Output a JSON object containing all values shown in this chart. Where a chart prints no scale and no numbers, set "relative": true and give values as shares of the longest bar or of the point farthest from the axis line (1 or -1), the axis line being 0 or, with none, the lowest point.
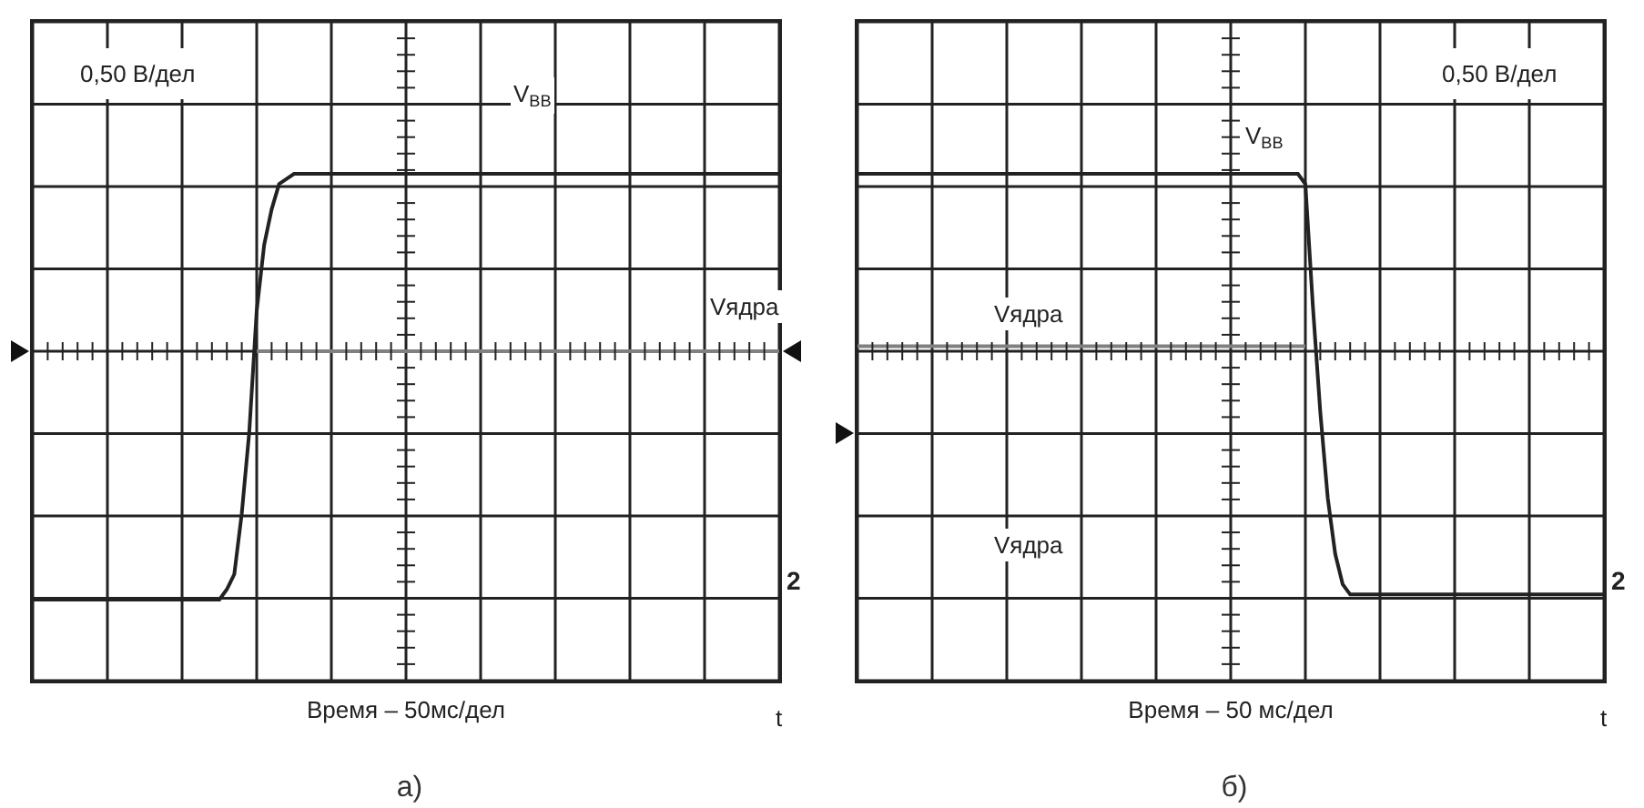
{
  "chart_data": [
    {
      "type": "line",
      "title": "а)",
      "xlabel": "Время – 50мс/дел",
      "relative": true,
      "grid": true,
      "categories": [
        null,
        null,
        null,
        null,
        null,
        null,
        null,
        null,
        null,
        null,
        null,
        null,
        null,
        null,
        null,
        null,
        null,
        null,
        null,
        null,
        null,
        null,
        null,
        null,
        null,
        null,
        null,
        null,
        null,
        null,
        null,
        null,
        null,
        null,
        null,
        null,
        null,
        null,
        null,
        null,
        null,
        null,
        null,
        null,
        null,
        null,
        null,
        null,
        null,
        null,
        null,
        null,
        null,
        null,
        null,
        null,
        null,
        null,
        null,
        null,
        null,
        null,
        null,
        null,
        null,
        null,
        null,
        null,
        null,
        null,
        null,
        null,
        null,
        null,
        null,
        null,
        null,
        null,
        null,
        null,
        null,
        null,
        null,
        null,
        null,
        null,
        null,
        null,
        null,
        null,
        null,
        null,
        null,
        null,
        null,
        null,
        null,
        null,
        null,
        null,
        null
      ],
      "series": [
        {
          "color": "#222222",
          "values": [
            0.16,
            0.16,
            0.16,
            0.16,
            0.16,
            0.16,
            0.16,
            0.16,
            0.16,
            0.16,
            0.16,
            0.16,
            0.16,
            0.16,
            0.16,
            0.16,
            0.16,
            0.16,
            0.16,
            0.16,
            0.16,
            0.16,
            0.16,
            0.16,
            0.16,
            0.16,
            0.18,
            0.21,
            0.33,
            0.49,
            0.73,
            0.86,
            0.93,
            0.98,
            0.99,
            1,
            1,
            1,
            1,
            1,
            1,
            1,
            1,
            1,
            1,
            1,
            1,
            1,
            1,
            1,
            1,
            1,
            1,
            1,
            1,
            1,
            1,
            1,
            1,
            1,
            1,
            1,
            1,
            1,
            1,
            1,
            1,
            1,
            1,
            1,
            1,
            1,
            1,
            1,
            1,
            1,
            1,
            1,
            1,
            1,
            1,
            1,
            1,
            1,
            1,
            1,
            1,
            1,
            1,
            1,
            1,
            1,
            1,
            1,
            1,
            1,
            1,
            1,
            1,
            1,
            1
          ]
        },
        {
          "color": "#808080",
          "values": [
            null,
            null,
            null,
            null,
            null,
            null,
            null,
            null,
            null,
            null,
            null,
            null,
            null,
            null,
            null,
            null,
            null,
            null,
            null,
            null,
            null,
            null,
            null,
            null,
            null,
            null,
            null,
            null,
            null,
            null,
            0.65,
            0.65,
            0.65,
            0.65,
            0.65,
            0.65,
            0.65,
            0.65,
            0.65,
            0.65,
            0.65,
            0.65,
            0.65,
            0.65,
            0.65,
            0.65,
            0.65,
            0.65,
            0.65,
            0.65,
            0.65,
            0.65,
            0.65,
            0.65,
            0.65,
            0.65,
            0.65,
            0.65,
            0.65,
            0.65,
            0.65,
            0.65,
            0.65,
            0.65,
            0.65,
            0.65,
            0.65,
            0.65,
            0.65,
            0.65,
            0.65,
            0.65,
            0.65,
            0.65,
            0.65,
            0.65,
            0.65,
            0.65,
            0.65,
            0.65,
            0.65,
            0.65,
            0.65,
            0.65,
            0.65,
            0.65,
            0.65,
            0.65,
            0.65,
            0.65,
            0.65,
            0.65,
            0.65,
            0.65,
            0.65,
            0.65,
            0.65,
            0.65,
            0.65,
            0.65,
            0.65
          ]
        }
      ],
      "annotations": [
        "0,50 В/дел",
        "t",
        "V$_{BB}$",
        "Vядра",
        "2"
      ]
    },
    {
      "type": "line",
      "title": "б)",
      "xlabel": "Время – 50 мс/дел",
      "relative": true,
      "grid": true,
      "categories": [
        null,
        null,
        null,
        null,
        null,
        null,
        null,
        null,
        null,
        null,
        null,
        null,
        null,
        null,
        null,
        null,
        null,
        null,
        null,
        null,
        null,
        null,
        null,
        null,
        null,
        null,
        null,
        null,
        null,
        null,
        null,
        null,
        null,
        null,
        null,
        null,
        null,
        null,
        null,
        null,
        null,
        null,
        null,
        null,
        null,
        null,
        null,
        null,
        null,
        null,
        null,
        null,
        null,
        null,
        null,
        null,
        null,
        null,
        null,
        null,
        null,
        null,
        null,
        null,
        null,
        null,
        null,
        null,
        null,
        null,
        null,
        null,
        null,
        null,
        null,
        null,
        null,
        null,
        null,
        null,
        null,
        null,
        null,
        null,
        null,
        null,
        null,
        null,
        null,
        null,
        null,
        null,
        null,
        null,
        null,
        null,
        null,
        null,
        null,
        null,
        null
      ],
      "series": [
        {
          "color": "#222222",
          "values": [
            1,
            1,
            1,
            1,
            1,
            1,
            1,
            1,
            1,
            1,
            1,
            1,
            1,
            1,
            1,
            1,
            1,
            1,
            1,
            1,
            1,
            1,
            1,
            1,
            1,
            1,
            1,
            1,
            1,
            1,
            1,
            1,
            1,
            1,
            1,
            1,
            1,
            1,
            1,
            1,
            1,
            1,
            1,
            1,
            1,
            1,
            1,
            1,
            1,
            1,
            1,
            1,
            1,
            1,
            1,
            1,
            1,
            1,
            1,
            1,
            0.98,
            0.74,
            0.53,
            0.36,
            0.25,
            0.19,
            0.17,
            0.17,
            0.17,
            0.17,
            0.17,
            0.17,
            0.17,
            0.17,
            0.17,
            0.17,
            0.17,
            0.17,
            0.17,
            0.17,
            0.17,
            0.17,
            0.17,
            0.17,
            0.17,
            0.17,
            0.17,
            0.17,
            0.17,
            0.17,
            0.17,
            0.17,
            0.17,
            0.17,
            0.17,
            0.17,
            0.17,
            0.17,
            0.17,
            0.17,
            0.17
          ]
        },
        {
          "color": "#808080",
          "values": [
            0.66,
            0.66,
            0.66,
            0.66,
            0.66,
            0.66,
            0.66,
            0.66,
            0.66,
            0.66,
            0.66,
            0.66,
            0.66,
            0.66,
            0.66,
            0.66,
            0.66,
            0.66,
            0.66,
            0.66,
            0.66,
            0.66,
            0.66,
            0.66,
            0.66,
            0.66,
            0.66,
            0.66,
            0.66,
            0.66,
            0.66,
            0.66,
            0.66,
            0.66,
            0.66,
            0.66,
            0.66,
            0.66,
            0.66,
            0.66,
            0.66,
            0.66,
            0.66,
            0.66,
            0.66,
            0.66,
            0.66,
            0.66,
            0.66,
            0.66,
            0.66,
            0.66,
            0.66,
            0.66,
            0.66,
            0.66,
            0.66,
            0.66,
            0.66,
            0.66,
            0.66,
            null,
            null,
            null,
            null,
            null,
            null,
            null,
            null,
            null,
            null,
            null,
            null,
            null,
            null,
            null,
            null,
            null,
            null,
            null,
            null,
            null,
            null,
            null,
            null,
            null,
            null,
            null,
            null,
            null,
            null,
            null,
            null,
            null,
            null,
            null,
            null,
            null,
            null,
            null,
            null
          ]
        }
      ],
      "annotations": [
        "0,50 В/дел",
        "t",
        "V$_{BB}$",
        "Vядра",
        "Vядра",
        "2"
      ]
    }
  ]
}
